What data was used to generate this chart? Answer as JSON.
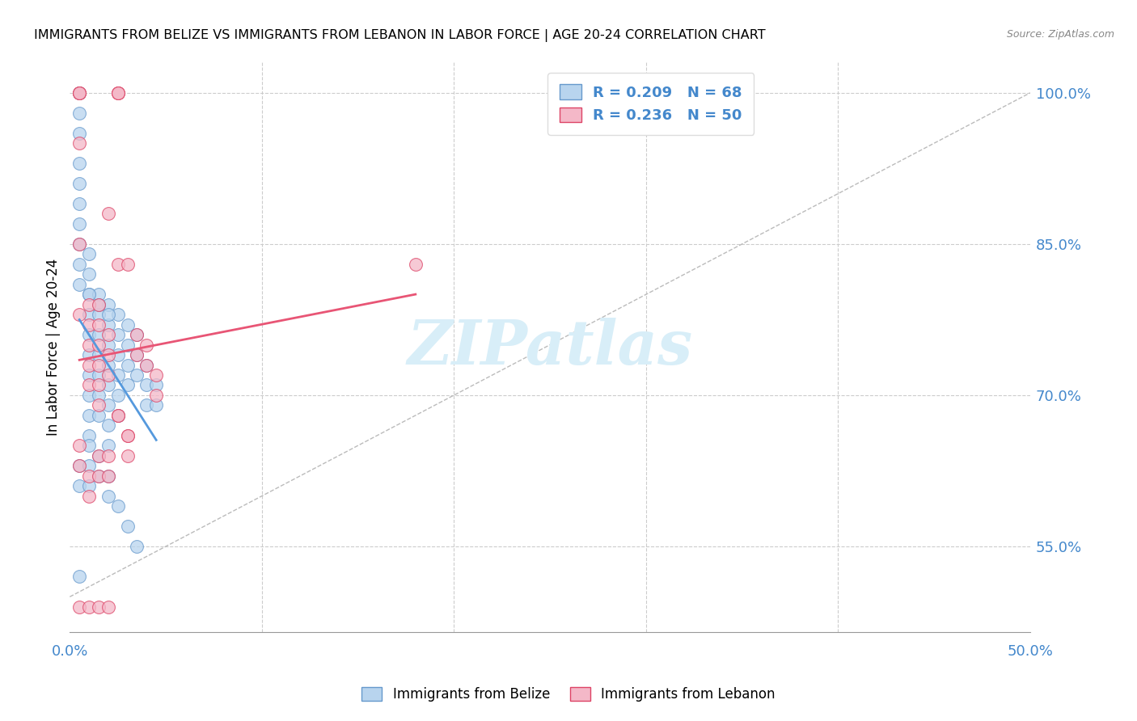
{
  "title": "IMMIGRANTS FROM BELIZE VS IMMIGRANTS FROM LEBANON IN LABOR FORCE | AGE 20-24 CORRELATION CHART",
  "source": "Source: ZipAtlas.com",
  "ylabel": "In Labor Force | Age 20-24",
  "ytick_values": [
    1.0,
    0.85,
    0.7,
    0.55
  ],
  "xlim": [
    0.0,
    0.5
  ],
  "ylim": [
    0.465,
    1.03
  ],
  "color_belize": "#b8d4ee",
  "color_lebanon": "#f4b8c8",
  "edge_belize": "#6699cc",
  "edge_lebanon": "#dd4466",
  "line_color_belize": "#5599dd",
  "line_color_lebanon": "#e85575",
  "watermark": "ZIPatlas",
  "watermark_color": "#d8eef8",
  "belize_x": [
    0.005,
    0.005,
    0.005,
    0.005,
    0.005,
    0.005,
    0.005,
    0.005,
    0.005,
    0.005,
    0.01,
    0.01,
    0.01,
    0.01,
    0.01,
    0.01,
    0.01,
    0.01,
    0.01,
    0.01,
    0.015,
    0.015,
    0.015,
    0.015,
    0.015,
    0.015,
    0.015,
    0.02,
    0.02,
    0.02,
    0.02,
    0.02,
    0.02,
    0.02,
    0.02,
    0.025,
    0.025,
    0.025,
    0.025,
    0.025,
    0.025,
    0.03,
    0.03,
    0.03,
    0.03,
    0.035,
    0.035,
    0.035,
    0.04,
    0.04,
    0.04,
    0.045,
    0.045,
    0.005,
    0.005,
    0.005,
    0.01,
    0.01,
    0.01,
    0.015,
    0.015,
    0.02,
    0.02,
    0.025,
    0.03,
    0.035,
    0.01,
    0.015,
    0.02
  ],
  "belize_y": [
    1.0,
    0.98,
    0.96,
    0.93,
    0.91,
    0.89,
    0.87,
    0.85,
    0.83,
    0.81,
    0.84,
    0.82,
    0.8,
    0.78,
    0.76,
    0.74,
    0.72,
    0.7,
    0.68,
    0.66,
    0.8,
    0.78,
    0.76,
    0.74,
    0.72,
    0.7,
    0.68,
    0.79,
    0.77,
    0.75,
    0.73,
    0.71,
    0.69,
    0.67,
    0.65,
    0.78,
    0.76,
    0.74,
    0.72,
    0.7,
    0.68,
    0.77,
    0.75,
    0.73,
    0.71,
    0.76,
    0.74,
    0.72,
    0.73,
    0.71,
    0.69,
    0.71,
    0.69,
    0.63,
    0.61,
    0.52,
    0.65,
    0.63,
    0.61,
    0.64,
    0.62,
    0.62,
    0.6,
    0.59,
    0.57,
    0.55,
    0.8,
    0.79,
    0.78
  ],
  "lebanon_x": [
    0.005,
    0.005,
    0.005,
    0.005,
    0.005,
    0.005,
    0.01,
    0.01,
    0.01,
    0.01,
    0.01,
    0.015,
    0.015,
    0.015,
    0.015,
    0.015,
    0.015,
    0.02,
    0.02,
    0.02,
    0.02,
    0.025,
    0.025,
    0.025,
    0.025,
    0.025,
    0.03,
    0.03,
    0.03,
    0.035,
    0.035,
    0.04,
    0.04,
    0.045,
    0.045,
    0.18,
    0.005,
    0.005,
    0.01,
    0.01,
    0.015,
    0.015,
    0.02,
    0.02,
    0.025,
    0.03,
    0.005,
    0.01,
    0.015,
    0.02
  ],
  "lebanon_y": [
    1.0,
    1.0,
    1.0,
    0.95,
    0.85,
    0.78,
    0.79,
    0.77,
    0.75,
    0.73,
    0.71,
    0.79,
    0.77,
    0.75,
    0.73,
    0.71,
    0.69,
    0.88,
    0.76,
    0.74,
    0.72,
    1.0,
    1.0,
    1.0,
    0.83,
    0.68,
    0.83,
    0.66,
    0.64,
    0.76,
    0.74,
    0.75,
    0.73,
    0.72,
    0.7,
    0.83,
    0.65,
    0.63,
    0.62,
    0.6,
    0.64,
    0.62,
    0.64,
    0.62,
    0.68,
    0.66,
    0.49,
    0.49,
    0.49,
    0.49
  ]
}
